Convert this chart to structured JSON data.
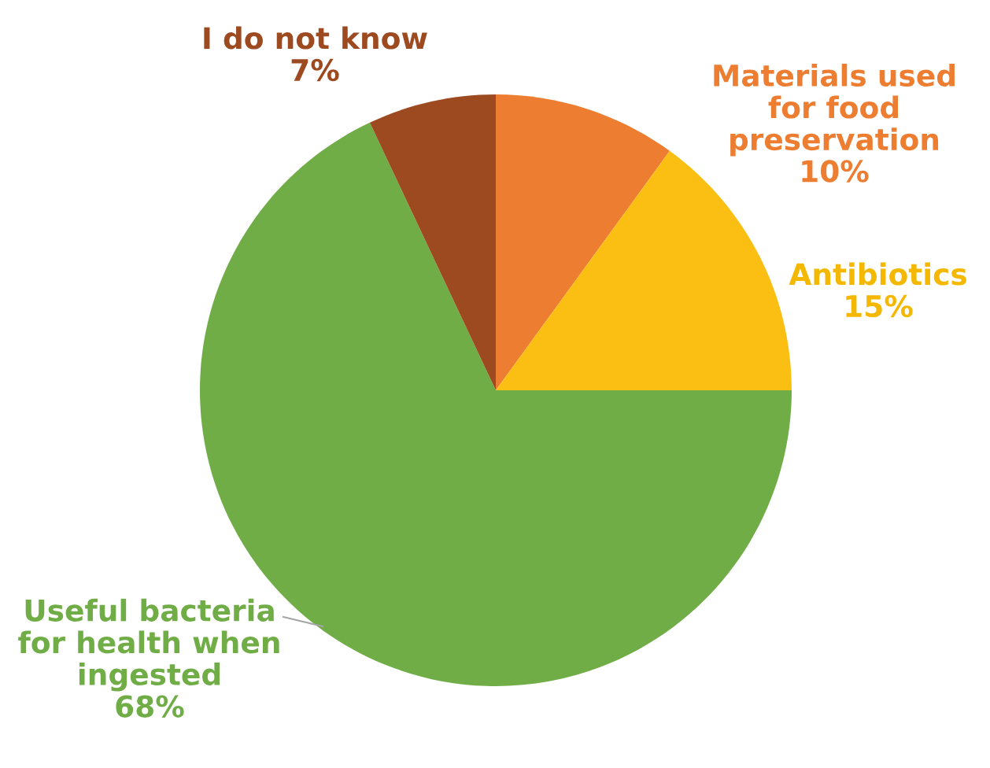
{
  "chart_data": {
    "type": "pie",
    "categories": [
      "Materials used\nfor food\npreservation",
      "Antibiotics",
      "Useful bacteria\nfor health when\ningested",
      "I do not know"
    ],
    "values": [
      10,
      15,
      68,
      7
    ],
    "value_labels": [
      "10%",
      "15%",
      "68%",
      "7%"
    ],
    "colors": [
      "#ed7d31",
      "#fbbf14",
      "#70ad47",
      "#9e4a21"
    ],
    "legend": false
  }
}
